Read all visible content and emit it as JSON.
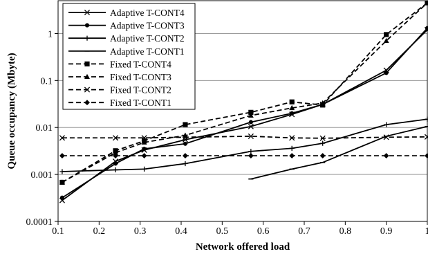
{
  "chart_data": {
    "type": "line",
    "xlabel": "Network offered load",
    "ylabel": "Queue occupancy (Mbyte)",
    "y_scale": "log",
    "xlim": [
      0.1,
      1.0
    ],
    "ylim": [
      0.0001,
      5
    ],
    "x_ticks": [
      "0.1",
      "0.2",
      "0.3",
      "0.4",
      "0.5",
      "0.6",
      "0.7",
      "0.8",
      "0.9",
      "1"
    ],
    "y_ticks": [
      "0.0001",
      "0.001",
      "0.01",
      "0.1",
      "1"
    ],
    "grid": "horizontal",
    "legend_position": "top-left",
    "series": [
      {
        "name": "Adaptive T-CONT4",
        "marker": "x",
        "dash": "solid",
        "x": [
          0.11,
          0.24,
          0.31,
          0.41,
          0.57,
          0.67,
          0.745,
          0.9,
          1.0
        ],
        "y": [
          0.00028,
          0.0019,
          0.0033,
          0.0055,
          0.0105,
          0.019,
          0.031,
          0.165,
          1.2
        ]
      },
      {
        "name": "Adaptive T-CONT3",
        "marker": "circle",
        "dash": "solid",
        "x": [
          0.11,
          0.24,
          0.31,
          0.41,
          0.57,
          0.67,
          0.745,
          0.9,
          1.0
        ],
        "y": [
          0.00032,
          0.0017,
          0.0035,
          0.0045,
          0.013,
          0.02,
          0.031,
          0.145,
          1.3
        ]
      },
      {
        "name": "Adaptive T-CONT2",
        "marker": "plus",
        "dash": "solid",
        "x": [
          0.11,
          0.24,
          0.31,
          0.41,
          0.57,
          0.67,
          0.745,
          0.9,
          1.0
        ],
        "y": [
          0.00115,
          0.00125,
          0.0013,
          0.0017,
          0.0031,
          0.0036,
          0.0046,
          0.0115,
          0.015
        ]
      },
      {
        "name": "Adaptive T-CONT1",
        "marker": "dash",
        "dash": "solid",
        "x": [
          0.57,
          0.67,
          0.745,
          0.9,
          1.0
        ],
        "y": [
          0.0008,
          0.0013,
          0.0018,
          0.0065,
          0.0105
        ]
      },
      {
        "name": "Fixed T-CONT4",
        "marker": "square",
        "dash": "dashed",
        "x": [
          0.11,
          0.24,
          0.31,
          0.41,
          0.57,
          0.67,
          0.745,
          0.9,
          1.0
        ],
        "y": [
          0.00068,
          0.0032,
          0.0052,
          0.0115,
          0.021,
          0.035,
          0.03,
          0.95,
          4.5
        ]
      },
      {
        "name": "Fixed T-CONT3",
        "marker": "triangle",
        "dash": "dashed",
        "x": [
          0.11,
          0.24,
          0.31,
          0.41,
          0.57,
          0.67,
          0.745,
          0.9,
          1.0
        ],
        "y": [
          0.00068,
          0.0029,
          0.0048,
          0.0068,
          0.018,
          0.026,
          0.033,
          0.7,
          4.5
        ]
      },
      {
        "name": "Fixed T-CONT2",
        "marker": "x",
        "dash": "dashed",
        "x": [
          0.11,
          0.24,
          0.31,
          0.41,
          0.57,
          0.67,
          0.745,
          0.9,
          1.0
        ],
        "y": [
          0.006,
          0.006,
          0.006,
          0.0062,
          0.0065,
          0.006,
          0.0059,
          0.0062,
          0.0063
        ]
      },
      {
        "name": "Fixed T-CONT1",
        "marker": "diamond",
        "dash": "dashed",
        "x": [
          0.11,
          0.24,
          0.31,
          0.41,
          0.57,
          0.67,
          0.745,
          0.9,
          1.0
        ],
        "y": [
          0.0025,
          0.0025,
          0.0025,
          0.0025,
          0.0025,
          0.0025,
          0.0025,
          0.0025,
          0.0025
        ]
      }
    ]
  }
}
